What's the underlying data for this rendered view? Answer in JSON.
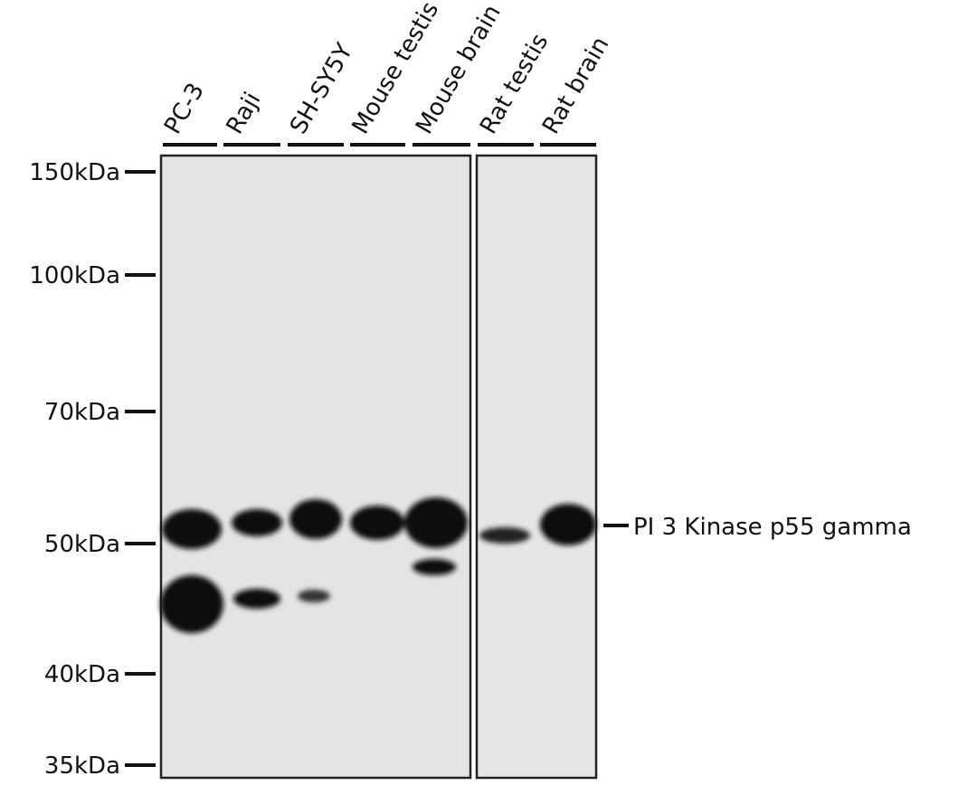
{
  "lanes": [
    "PC-3",
    "Raji",
    "SH-SY5Y",
    "Mouse testis",
    "Mouse brain",
    "Rat testis",
    "Rat brain"
  ],
  "markers": [
    "150kDa",
    "100kDa",
    "70kDa",
    "50kDa",
    "40kDa",
    "35kDa"
  ],
  "target": "PI 3 Kinase p55 gamma"
}
